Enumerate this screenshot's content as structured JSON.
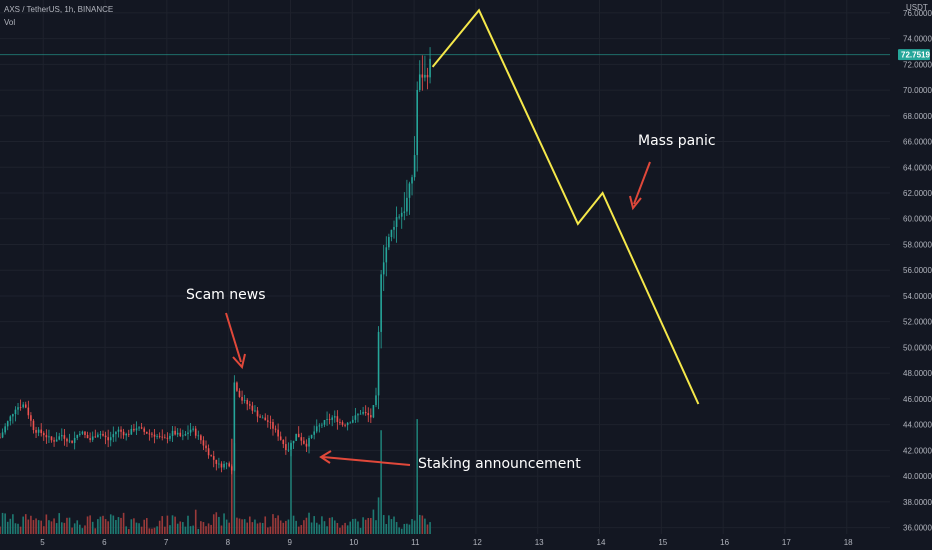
{
  "header": {
    "symbol_line": "AXS / TetherUS, 1h, BINANCE",
    "volume_label": "Vol"
  },
  "currency_label": "USDT",
  "last_price": "72.7519",
  "colors": {
    "background": "#131722",
    "grid": "#1e222d",
    "up": "#26a69a",
    "down": "#ef5350",
    "up_volume": "#1e7b73",
    "down_volume": "#9b3a3a",
    "projection": "#f5e84a",
    "arrow": "#e0483a",
    "last_price_line": "#26a69a"
  },
  "annotations": {
    "scam_news": "Scam news",
    "staking": "Staking announcement",
    "mass_panic": "Mass panic"
  },
  "chart_data": {
    "type": "candlestick",
    "title": "AXS / TetherUS, 1h, BINANCE",
    "x_tick_labels": [
      "5",
      "6",
      "7",
      "8",
      "9",
      "10",
      "11",
      "12",
      "13",
      "14",
      "15",
      "16",
      "17",
      "18"
    ],
    "y_tick_labels": [
      "36.0000",
      "38.0000",
      "40.0000",
      "42.0000",
      "44.0000",
      "46.0000",
      "48.0000",
      "50.0000",
      "52.0000",
      "54.0000",
      "56.0000",
      "58.0000",
      "60.0000",
      "62.0000",
      "64.0000",
      "66.0000",
      "68.0000",
      "70.0000",
      "72.0000",
      "74.0000",
      "76.0000"
    ],
    "ylim": [
      35.5,
      77.0
    ],
    "xlim": [
      4.3,
      18.7
    ],
    "grid": true,
    "price_path_points": [
      [
        4.3,
        43.0
      ],
      [
        4.4,
        44.0
      ],
      [
        4.55,
        45.3
      ],
      [
        4.7,
        45.6
      ],
      [
        4.85,
        43.6
      ],
      [
        5.0,
        43.3
      ],
      [
        5.15,
        42.7
      ],
      [
        5.3,
        43.2
      ],
      [
        5.45,
        42.6
      ],
      [
        5.6,
        43.5
      ],
      [
        5.75,
        42.8
      ],
      [
        5.9,
        43.4
      ],
      [
        6.05,
        42.8
      ],
      [
        6.2,
        43.6
      ],
      [
        6.35,
        43.2
      ],
      [
        6.5,
        43.8
      ],
      [
        6.65,
        43.4
      ],
      [
        6.8,
        43.2
      ],
      [
        6.95,
        42.8
      ],
      [
        7.1,
        43.4
      ],
      [
        7.25,
        43.0
      ],
      [
        7.4,
        43.7
      ],
      [
        7.55,
        42.8
      ],
      [
        7.7,
        41.6
      ],
      [
        7.85,
        40.8
      ],
      [
        8.0,
        41.0
      ],
      [
        8.05,
        40.6
      ],
      [
        8.08,
        47.4
      ],
      [
        8.2,
        46.0
      ],
      [
        8.35,
        45.4
      ],
      [
        8.5,
        44.6
      ],
      [
        8.65,
        44.2
      ],
      [
        8.8,
        43.2
      ],
      [
        8.95,
        42.0
      ],
      [
        9.1,
        43.3
      ],
      [
        9.25,
        42.4
      ],
      [
        9.4,
        43.6
      ],
      [
        9.55,
        44.2
      ],
      [
        9.7,
        44.6
      ],
      [
        9.85,
        44.0
      ],
      [
        10.0,
        44.4
      ],
      [
        10.15,
        45.0
      ],
      [
        10.3,
        44.6
      ],
      [
        10.4,
        46.4
      ],
      [
        10.45,
        55.6
      ],
      [
        10.55,
        57.8
      ],
      [
        10.7,
        60.0
      ],
      [
        10.85,
        60.8
      ],
      [
        11.0,
        64.0
      ],
      [
        11.05,
        70.0
      ],
      [
        11.1,
        71.2
      ],
      [
        11.2,
        71.0
      ],
      [
        11.28,
        72.6
      ]
    ],
    "projection_points": [
      [
        11.3,
        71.8
      ],
      [
        12.05,
        76.2
      ],
      [
        13.65,
        59.6
      ],
      [
        14.05,
        62.0
      ],
      [
        15.6,
        45.6
      ]
    ],
    "volume_note": "relative volume bars under the price series; spikes near 8.05, 9.0, 10.45, 11.05"
  }
}
